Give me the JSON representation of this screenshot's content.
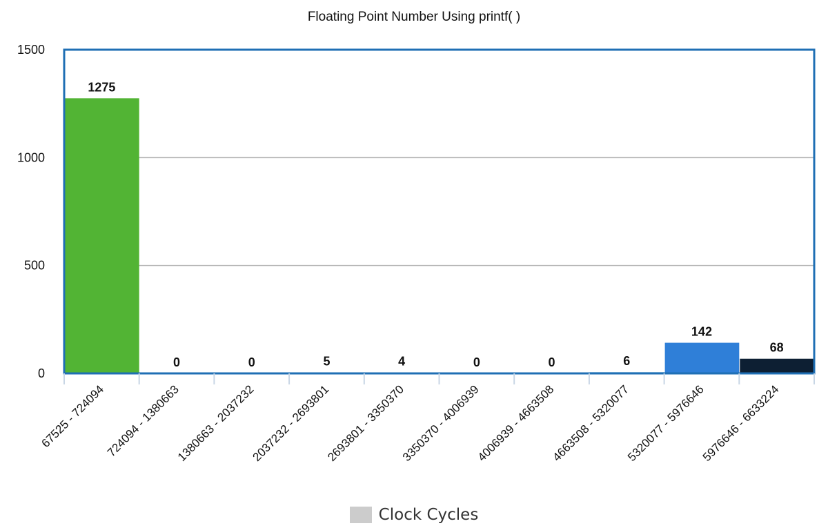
{
  "chart_data": {
    "type": "bar",
    "title": "Floating Point Number Using printf( )",
    "categories": [
      "67525 - 724094",
      "724094 - 1380663",
      "1380663 - 2037232",
      "2037232 - 2693801",
      "2693801 - 3350370",
      "3350370 - 4006939",
      "4006939 - 4663508",
      "4663508 - 5320077",
      "5320077 - 5976646",
      "5976646 - 6633224"
    ],
    "series": [
      {
        "name": "Clock Cycles",
        "values": [
          1275,
          0,
          0,
          5,
          4,
          0,
          0,
          6,
          142,
          68
        ]
      }
    ],
    "data_labels": [
      "1275",
      "0",
      "0",
      "5",
      "4",
      "0",
      "0",
      "6",
      "142",
      "68"
    ],
    "bar_colors": [
      "#52b434",
      "#9cc8e6",
      "#9cc8e6",
      "#9cc8e6",
      "#9cc8e6",
      "#9cc8e6",
      "#9cc8e6",
      "#9cc8e6",
      "#2f7fd8",
      "#0d1f33"
    ],
    "ylim": [
      0,
      1500
    ],
    "yticks": [
      0,
      500,
      1000,
      1500
    ],
    "ytick_labels": [
      "0",
      "500",
      "1000",
      "1500"
    ],
    "grid": true,
    "legend_position": "bottom",
    "legend_color": "#cccccc",
    "frame_color": "#1f6fb4",
    "grid_color": "#b0b0b0"
  }
}
